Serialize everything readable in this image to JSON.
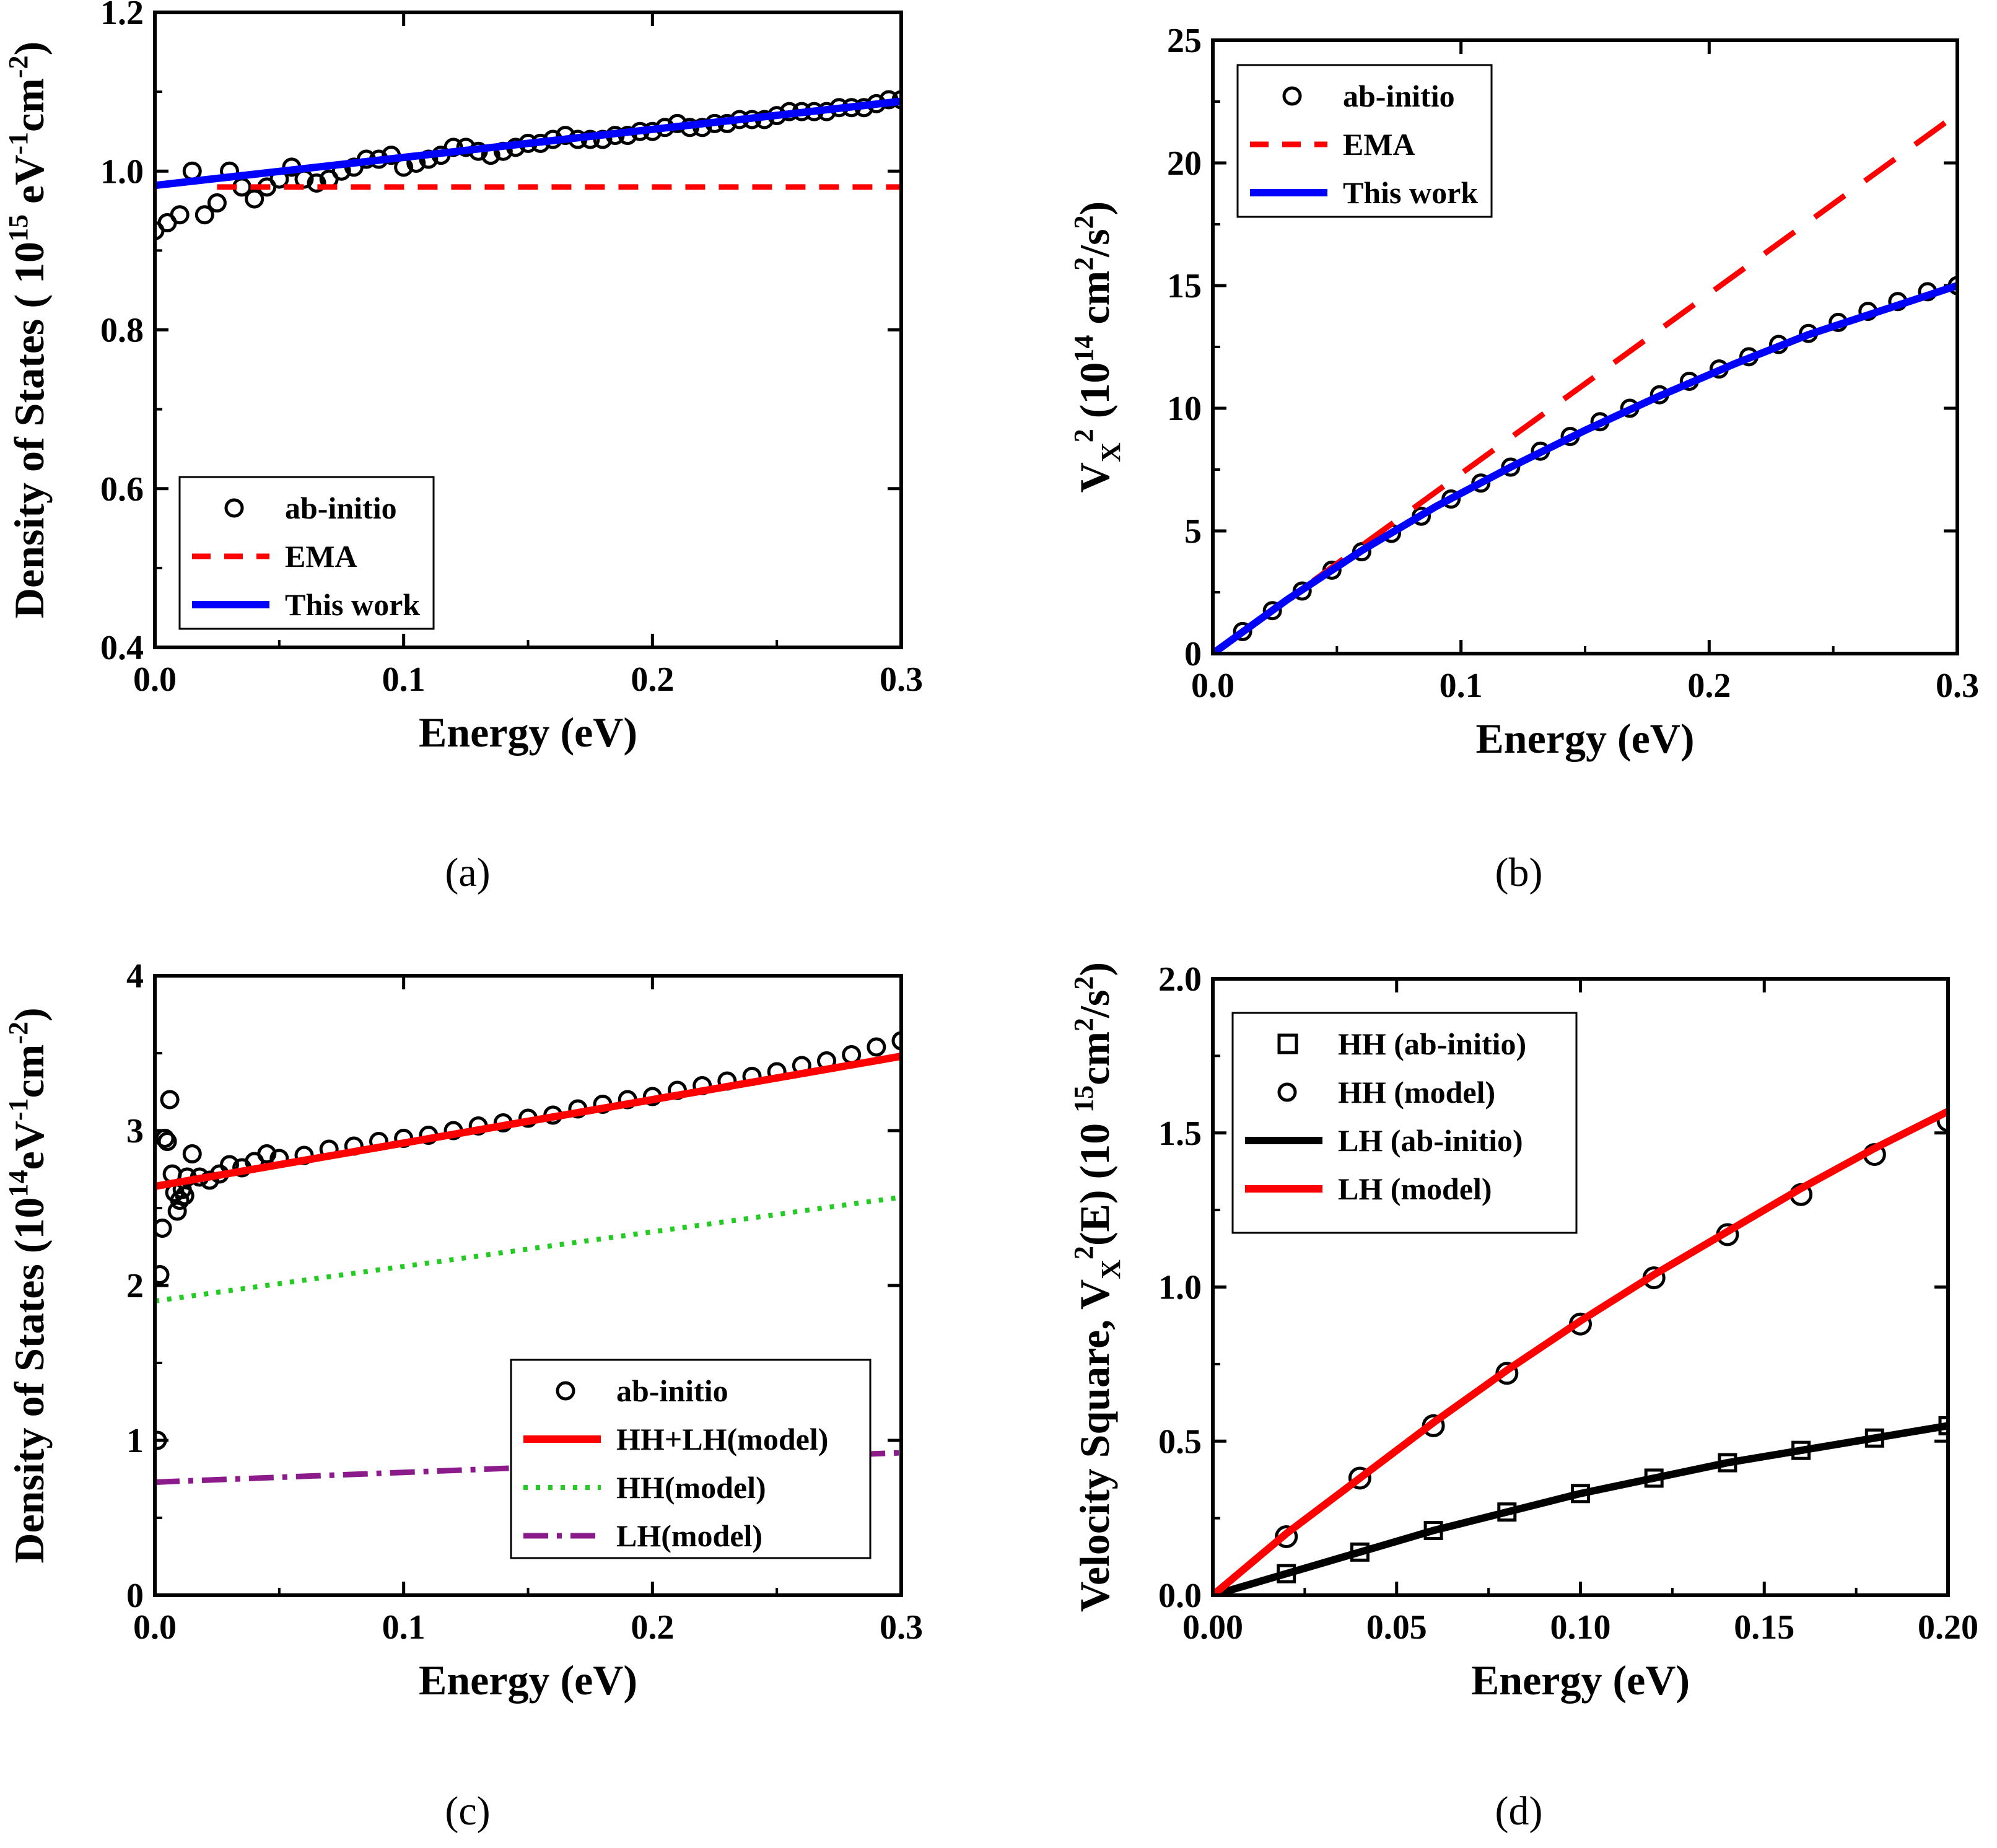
{
  "chart_data": [
    {
      "panel": "(a)",
      "type": "line",
      "xlabel": "Energy (eV)",
      "ylabel": {
        "main": "Density of States ( 10",
        "sup1": "15",
        "mid": " eV",
        "sup2": "-1",
        "mid2": "cm",
        "sup3": "-2",
        "end": ")"
      },
      "xlim": [
        0,
        0.3
      ],
      "ylim": [
        0.4,
        1.2
      ],
      "xticks": [
        0.0,
        0.1,
        0.2,
        0.3
      ],
      "xtick_labels": [
        "0.0",
        "0.1",
        "0.2",
        "0.3"
      ],
      "yticks": [
        0.4,
        0.6,
        0.8,
        1.0,
        1.2
      ],
      "ytick_labels": [
        "0.4",
        "0.6",
        "0.8",
        "1.0",
        "1.2"
      ],
      "legend_position": "bottom-left",
      "series": [
        {
          "name": "ab-initio",
          "style": "open-circle",
          "color": "#000000",
          "x": [
            0.0,
            0.005,
            0.01,
            0.015,
            0.02,
            0.025,
            0.03,
            0.035,
            0.04,
            0.045,
            0.05,
            0.055,
            0.06,
            0.065,
            0.07,
            0.075,
            0.08,
            0.085,
            0.09,
            0.095,
            0.1,
            0.105,
            0.11,
            0.115,
            0.12,
            0.125,
            0.13,
            0.135,
            0.14,
            0.145,
            0.15,
            0.155,
            0.16,
            0.165,
            0.17,
            0.175,
            0.18,
            0.185,
            0.19,
            0.195,
            0.2,
            0.205,
            0.21,
            0.215,
            0.22,
            0.225,
            0.23,
            0.235,
            0.24,
            0.245,
            0.25,
            0.255,
            0.26,
            0.265,
            0.27,
            0.275,
            0.28,
            0.285,
            0.29,
            0.295,
            0.3
          ],
          "y": [
            0.925,
            0.935,
            0.945,
            1.0,
            0.945,
            0.96,
            1.0,
            0.98,
            0.965,
            0.98,
            0.99,
            1.005,
            0.99,
            0.985,
            0.99,
            1.0,
            1.005,
            1.015,
            1.015,
            1.02,
            1.005,
            1.01,
            1.015,
            1.02,
            1.03,
            1.03,
            1.025,
            1.02,
            1.025,
            1.03,
            1.035,
            1.035,
            1.04,
            1.045,
            1.04,
            1.04,
            1.04,
            1.045,
            1.045,
            1.05,
            1.05,
            1.055,
            1.06,
            1.055,
            1.055,
            1.06,
            1.06,
            1.065,
            1.065,
            1.065,
            1.07,
            1.075,
            1.075,
            1.075,
            1.075,
            1.08,
            1.08,
            1.08,
            1.085,
            1.09,
            1.09
          ]
        },
        {
          "name": "EMA",
          "style": "dashed",
          "color": "#ff0000",
          "x": [
            0.025,
            0.3
          ],
          "y": [
            0.98,
            0.98
          ]
        },
        {
          "name": "This work",
          "style": "solid",
          "color": "#0000ff",
          "x": [
            0.0,
            0.3
          ],
          "y": [
            0.982,
            1.088
          ]
        }
      ]
    },
    {
      "panel": "(b)",
      "type": "line",
      "xlabel": "Energy (eV)",
      "ylabel": {
        "main": "V",
        "sup1": "2",
        "sub": "X",
        "mid": "  (10",
        "sup2": "14",
        "mid2": " cm",
        "sup3": "2",
        "mid3": "/s",
        "sup4": "2",
        "end": ")"
      },
      "xlim": [
        0,
        0.3
      ],
      "ylim": [
        0,
        25
      ],
      "xticks": [
        0.0,
        0.1,
        0.2,
        0.3
      ],
      "xtick_labels": [
        "0.0",
        "0.1",
        "0.2",
        "0.3"
      ],
      "yticks": [
        0,
        5,
        10,
        15,
        20,
        25
      ],
      "ytick_labels": [
        "0",
        "5",
        "10",
        "15",
        "20",
        "25"
      ],
      "legend_position": "top-left",
      "series": [
        {
          "name": "ab-initio",
          "style": "open-circle-filled-white",
          "color": "#000000",
          "x": [
            0.012,
            0.024,
            0.036,
            0.048,
            0.06,
            0.072,
            0.084,
            0.096,
            0.108,
            0.12,
            0.132,
            0.144,
            0.156,
            0.168,
            0.18,
            0.192,
            0.204,
            0.216,
            0.228,
            0.24,
            0.252,
            0.264,
            0.276,
            0.288,
            0.3
          ],
          "y": [
            0.9,
            1.75,
            2.55,
            3.4,
            4.15,
            4.9,
            5.6,
            6.3,
            6.95,
            7.6,
            8.25,
            8.85,
            9.45,
            10.0,
            10.55,
            11.1,
            11.6,
            12.1,
            12.6,
            13.05,
            13.5,
            13.95,
            14.35,
            14.75,
            15.0
          ]
        },
        {
          "name": "EMA",
          "style": "dashed",
          "color": "#ff0000",
          "x": [
            0.0,
            0.3
          ],
          "y": [
            0.0,
            22.0
          ]
        },
        {
          "name": "This work",
          "style": "solid",
          "color": "#0000ff",
          "x": [
            0.0,
            0.03,
            0.06,
            0.09,
            0.12,
            0.15,
            0.18,
            0.21,
            0.24,
            0.27,
            0.3
          ],
          "y": [
            0.0,
            2.2,
            4.2,
            6.0,
            7.6,
            9.1,
            10.5,
            11.8,
            13.0,
            14.0,
            15.0
          ]
        }
      ]
    },
    {
      "panel": "(c)",
      "type": "line",
      "xlabel": "Energy (eV)",
      "ylabel": {
        "main": "Density of States (10",
        "sup1": "14",
        "mid": "eV",
        "sup2": "-1",
        "mid2": "cm",
        "sup3": "-2",
        "end": ")"
      },
      "xlim": [
        0,
        0.3
      ],
      "ylim": [
        0,
        4
      ],
      "xticks": [
        0.0,
        0.1,
        0.2,
        0.3
      ],
      "xtick_labels": [
        "0.0",
        "0.1",
        "0.2",
        "0.3"
      ],
      "yticks": [
        0,
        1,
        2,
        3,
        4
      ],
      "ytick_labels": [
        "0",
        "1",
        "2",
        "3",
        "4"
      ],
      "legend_position": "bottom-right",
      "series": [
        {
          "name": "ab-initio",
          "style": "open-circle-dense",
          "color": "#000000",
          "x": [
            0.001,
            0.002,
            0.003,
            0.004,
            0.005,
            0.006,
            0.007,
            0.008,
            0.009,
            0.01,
            0.011,
            0.012,
            0.013,
            0.015,
            0.018,
            0.022,
            0.026,
            0.03,
            0.035,
            0.04,
            0.045,
            0.05,
            0.06,
            0.07,
            0.08,
            0.09,
            0.1,
            0.11,
            0.12,
            0.13,
            0.14,
            0.15,
            0.16,
            0.17,
            0.18,
            0.19,
            0.2,
            0.21,
            0.22,
            0.23,
            0.24,
            0.25,
            0.26,
            0.27,
            0.28,
            0.29,
            0.3
          ],
          "y": [
            1.0,
            2.07,
            2.37,
            2.95,
            2.93,
            3.2,
            2.72,
            2.6,
            2.48,
            2.55,
            2.62,
            2.58,
            2.7,
            2.85,
            2.7,
            2.68,
            2.72,
            2.78,
            2.76,
            2.8,
            2.85,
            2.82,
            2.84,
            2.88,
            2.9,
            2.93,
            2.95,
            2.97,
            3.0,
            3.03,
            3.05,
            3.08,
            3.1,
            3.14,
            3.17,
            3.2,
            3.22,
            3.26,
            3.29,
            3.32,
            3.35,
            3.38,
            3.42,
            3.45,
            3.49,
            3.54,
            3.58
          ]
        },
        {
          "name": "HH+LH(model)",
          "style": "solid",
          "color": "#ff0000",
          "x": [
            0.0,
            0.3
          ],
          "y": [
            2.64,
            3.48
          ]
        },
        {
          "name": "HH(model)",
          "style": "dotted",
          "color": "#22cc22",
          "x": [
            0.0,
            0.3
          ],
          "y": [
            1.9,
            2.57
          ]
        },
        {
          "name": "LH(model)",
          "style": "dash-dot",
          "color": "#8b1a8b",
          "x": [
            0.0,
            0.3
          ],
          "y": [
            0.73,
            0.92
          ]
        }
      ]
    },
    {
      "panel": "(d)",
      "type": "line",
      "xlabel": "Energy (eV)",
      "ylabel": {
        "main": "Velocity Square, V",
        "sub": "X",
        "sup1": "2",
        "mid": "(E) (10 ",
        "sup2": "15",
        "mid2": "cm",
        "sup3": "2",
        "mid3": "/s",
        "sup4": "2",
        "end": ")"
      },
      "xlim": [
        0,
        0.2
      ],
      "ylim": [
        0,
        2.0
      ],
      "xticks": [
        0.0,
        0.05,
        0.1,
        0.15,
        0.2
      ],
      "xtick_labels": [
        "0.00",
        "0.05",
        "0.10",
        "0.15",
        "0.20"
      ],
      "yticks": [
        0.0,
        0.5,
        1.0,
        1.5,
        2.0
      ],
      "ytick_labels": [
        "0.0",
        "0.5",
        "1.0",
        "1.5",
        "2.0"
      ],
      "legend_position": "top-left",
      "series": [
        {
          "name": "HH (ab-initio)",
          "style": "open-square",
          "color": "#000000",
          "x": [
            0.02,
            0.04,
            0.06,
            0.08,
            0.1,
            0.12,
            0.14,
            0.16,
            0.18,
            0.2
          ],
          "y": [
            0.07,
            0.14,
            0.21,
            0.27,
            0.33,
            0.38,
            0.43,
            0.47,
            0.51,
            0.55
          ]
        },
        {
          "name": "HH (model)",
          "style": "open-circle",
          "color": "#000000",
          "x": [
            0.02,
            0.04,
            0.06,
            0.08,
            0.1,
            0.12,
            0.14,
            0.16,
            0.18,
            0.2
          ],
          "y": [
            0.19,
            0.38,
            0.55,
            0.72,
            0.88,
            1.03,
            1.17,
            1.3,
            1.43,
            1.54
          ]
        },
        {
          "name": "LH (ab-initio)",
          "style": "solid",
          "color": "#000000",
          "x": [
            0.0,
            0.02,
            0.04,
            0.06,
            0.08,
            0.1,
            0.12,
            0.14,
            0.16,
            0.18,
            0.2
          ],
          "y": [
            0.0,
            0.07,
            0.14,
            0.21,
            0.27,
            0.33,
            0.38,
            0.43,
            0.47,
            0.51,
            0.55
          ]
        },
        {
          "name": "LH (model)",
          "style": "solid",
          "color": "#ff0000",
          "x": [
            0.0,
            0.02,
            0.04,
            0.06,
            0.08,
            0.1,
            0.12,
            0.14,
            0.16,
            0.18,
            0.2
          ],
          "y": [
            0.0,
            0.2,
            0.38,
            0.56,
            0.73,
            0.89,
            1.04,
            1.18,
            1.32,
            1.45,
            1.57
          ]
        }
      ]
    }
  ],
  "captions": {
    "a": "(a)",
    "b": "(b)",
    "c": "(c)",
    "d": "(d)"
  }
}
